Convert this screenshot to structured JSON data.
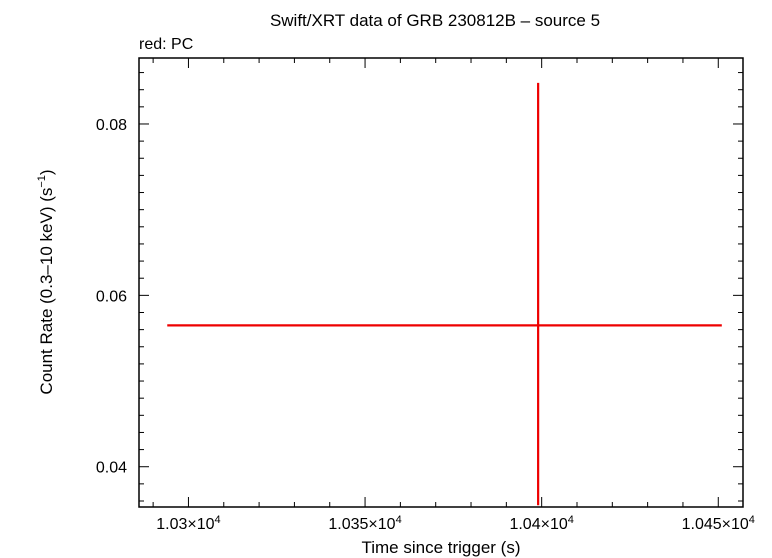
{
  "chart_data": {
    "type": "scatter",
    "title": "Swift/XRT data of GRB 230812B – source 5",
    "subtitle": "red: PC",
    "xlabel": "Time since trigger (s)",
    "ylabel": "Count Rate (0.3–10 keV) (s⁻¹)",
    "ylabel_main": "Count Rate (0.3–10 keV) (s",
    "ylabel_sup": "−1",
    "ylabel_end": ")",
    "xlim": [
      10286,
      10457
    ],
    "ylim": [
      0.0353,
      0.0877
    ],
    "x_ticks": [
      {
        "value": 10300,
        "mantissa": "1.03×10",
        "exp": "4"
      },
      {
        "value": 10350,
        "mantissa": "1.035×10",
        "exp": "4"
      },
      {
        "value": 10400,
        "mantissa": "1.04×10",
        "exp": "4"
      },
      {
        "value": 10450,
        "mantissa": "1.045×10",
        "exp": "4"
      }
    ],
    "y_ticks": [
      {
        "value": 0.04,
        "label": "0.04"
      },
      {
        "value": 0.06,
        "label": "0.06"
      },
      {
        "value": 0.08,
        "label": "0.08"
      }
    ],
    "grid": false,
    "series": [
      {
        "name": "PC",
        "color": "#ee0000",
        "points": [
          {
            "x": 10399,
            "y": 0.0565,
            "x_low": 10294,
            "x_high": 10451,
            "y_low": 0.0355,
            "y_high": 0.0848
          }
        ]
      }
    ]
  }
}
